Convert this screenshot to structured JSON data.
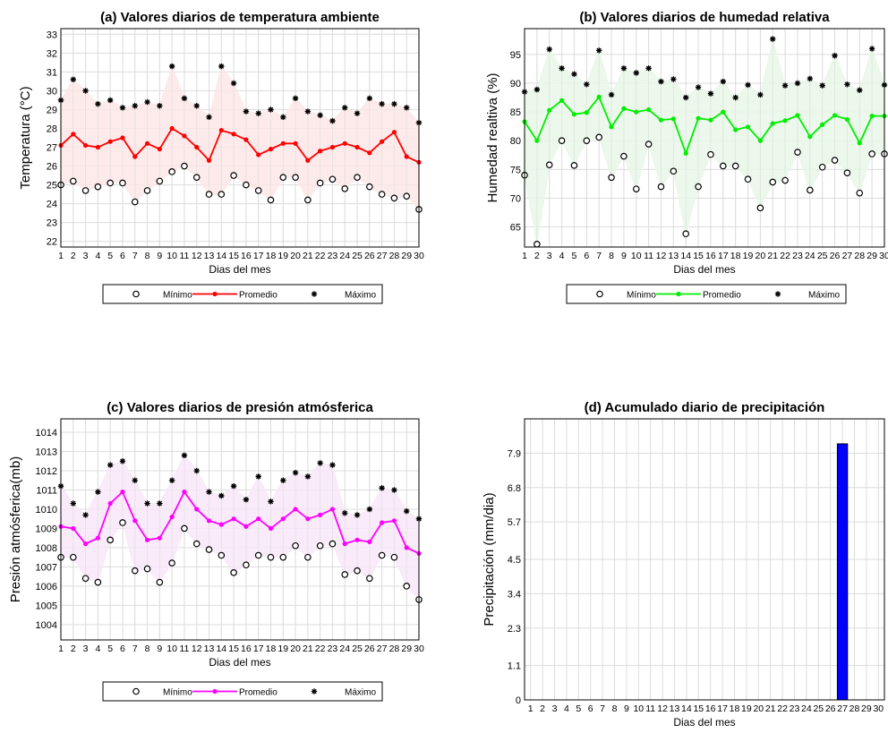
{
  "chart_data": [
    {
      "type": "line",
      "title": "(a) Valores diarios de temperatura ambiente",
      "xlabel": "Dias del mes",
      "ylabel": "Temperatura (°C)",
      "ylim": [
        21.7,
        33.3
      ],
      "yticks": [
        22,
        23,
        24,
        25,
        26,
        27,
        28,
        29,
        30,
        31,
        32,
        33
      ],
      "x": [
        1,
        2,
        3,
        4,
        5,
        6,
        7,
        8,
        9,
        10,
        11,
        12,
        13,
        14,
        15,
        16,
        17,
        18,
        19,
        20,
        21,
        22,
        23,
        24,
        25,
        26,
        27,
        28,
        29,
        30
      ],
      "grid": true,
      "legend_position": "bottom",
      "colors": {
        "line": "#ff0000",
        "band": "#fde8e8"
      },
      "series": [
        {
          "name": "Mínimo",
          "marker": "open-circle",
          "values": [
            25.0,
            25.2,
            24.7,
            24.9,
            25.1,
            25.1,
            24.1,
            24.7,
            25.2,
            25.7,
            26.0,
            25.4,
            24.5,
            24.5,
            25.5,
            25.0,
            24.7,
            24.2,
            25.4,
            25.4,
            24.2,
            25.1,
            25.3,
            24.8,
            25.4,
            24.9,
            24.5,
            24.3,
            24.4,
            23.7
          ]
        },
        {
          "name": "Promedio",
          "marker": "filled-circle-line",
          "values": [
            27.1,
            27.7,
            27.1,
            27.0,
            27.3,
            27.5,
            26.5,
            27.2,
            26.9,
            28.0,
            27.6,
            27.0,
            26.3,
            27.9,
            27.7,
            27.4,
            26.6,
            26.9,
            27.2,
            27.2,
            26.3,
            26.8,
            27.0,
            27.2,
            27.0,
            26.7,
            27.3,
            27.8,
            26.5,
            26.2
          ]
        },
        {
          "name": "Máximo",
          "marker": "asterisk",
          "values": [
            29.5,
            30.6,
            30.0,
            29.3,
            29.5,
            29.1,
            29.2,
            29.4,
            29.2,
            31.3,
            29.6,
            29.2,
            28.6,
            31.3,
            30.4,
            28.9,
            28.8,
            29.0,
            28.6,
            29.6,
            28.9,
            28.7,
            28.4,
            29.1,
            28.8,
            29.6,
            29.3,
            29.3,
            29.1,
            28.3
          ]
        }
      ]
    },
    {
      "type": "line",
      "title": "(b) Valores diarios de humedad relativa",
      "xlabel": "Dias del mes",
      "ylabel": "Humedad realtiva (%)",
      "ylim": [
        61.5,
        99.5
      ],
      "yticks": [
        65,
        70,
        75,
        80,
        85,
        90,
        95
      ],
      "x": [
        1,
        2,
        3,
        4,
        5,
        6,
        7,
        8,
        9,
        10,
        11,
        12,
        13,
        14,
        15,
        16,
        17,
        18,
        19,
        20,
        21,
        22,
        23,
        24,
        25,
        26,
        27,
        28,
        29,
        30
      ],
      "grid": true,
      "legend_position": "bottom",
      "colors": {
        "line": "#00ee00",
        "band": "#e8f7e8"
      },
      "series": [
        {
          "name": "Mínimo",
          "marker": "open-circle",
          "values": [
            74.0,
            62.0,
            75.8,
            80.0,
            75.7,
            80.0,
            80.6,
            73.6,
            77.3,
            71.6,
            79.4,
            72.0,
            74.7,
            63.8,
            72.0,
            77.6,
            75.6,
            75.6,
            73.3,
            68.3,
            72.8,
            73.1,
            78.0,
            71.4,
            75.4,
            76.6,
            74.4,
            70.9,
            77.7,
            77.7
          ]
        },
        {
          "name": "Promedio",
          "marker": "filled-circle-line",
          "values": [
            83.3,
            80.0,
            85.3,
            87.0,
            84.6,
            84.9,
            87.6,
            82.4,
            85.6,
            85.0,
            85.4,
            83.6,
            83.8,
            77.8,
            83.9,
            83.6,
            85.0,
            81.9,
            82.4,
            80.0,
            83.0,
            83.5,
            84.4,
            80.7,
            82.8,
            84.4,
            83.7,
            79.6,
            84.3,
            84.3
          ]
        },
        {
          "name": "Máximo",
          "marker": "asterisk",
          "values": [
            88.5,
            88.9,
            95.9,
            92.6,
            91.6,
            89.8,
            95.7,
            88.0,
            92.6,
            91.8,
            92.6,
            90.3,
            90.7,
            87.5,
            89.3,
            88.2,
            90.3,
            87.5,
            89.7,
            88.0,
            97.7,
            89.6,
            90.0,
            90.8,
            89.6,
            94.8,
            89.8,
            88.8,
            96.0,
            89.7
          ]
        }
      ]
    },
    {
      "type": "line",
      "title": "(c) Valores diarios de presión atmósferica",
      "xlabel": "Dias del mes",
      "ylabel": "Presión atmósferica(mb)",
      "ylim": [
        1003.2,
        1014.7
      ],
      "yticks": [
        1004,
        1005,
        1006,
        1007,
        1008,
        1009,
        1010,
        1011,
        1012,
        1013,
        1014
      ],
      "x": [
        1,
        2,
        3,
        4,
        5,
        6,
        7,
        8,
        9,
        10,
        11,
        12,
        13,
        14,
        15,
        16,
        17,
        18,
        19,
        20,
        21,
        22,
        23,
        24,
        25,
        26,
        27,
        28,
        29,
        30
      ],
      "grid": true,
      "legend_position": "bottom",
      "colors": {
        "line": "#ff00ff",
        "band": "#f8e8f8"
      },
      "series": [
        {
          "name": "Mínimo",
          "marker": "open-circle",
          "values": [
            1007.5,
            1007.5,
            1006.4,
            1006.2,
            1008.4,
            1009.3,
            1006.8,
            1006.9,
            1006.2,
            1007.2,
            1009.0,
            1008.2,
            1007.9,
            1007.6,
            1006.7,
            1007.1,
            1007.6,
            1007.5,
            1007.5,
            1008.1,
            1007.5,
            1008.1,
            1008.2,
            1006.6,
            1006.8,
            1006.4,
            1007.6,
            1007.5,
            1006.0,
            1005.3
          ]
        },
        {
          "name": "Promedio",
          "marker": "filled-circle-line",
          "values": [
            1009.1,
            1009.0,
            1008.2,
            1008.5,
            1010.3,
            1010.9,
            1009.4,
            1008.4,
            1008.5,
            1009.6,
            1010.9,
            1010.0,
            1009.4,
            1009.2,
            1009.5,
            1009.1,
            1009.5,
            1009.0,
            1009.5,
            1010.0,
            1009.5,
            1009.7,
            1010.0,
            1008.2,
            1008.4,
            1008.3,
            1009.3,
            1009.4,
            1008.0,
            1007.7
          ]
        },
        {
          "name": "Máximo",
          "marker": "asterisk",
          "values": [
            1011.2,
            1010.3,
            1009.7,
            1010.9,
            1012.3,
            1012.5,
            1011.5,
            1010.3,
            1010.3,
            1011.5,
            1012.8,
            1012.0,
            1010.9,
            1010.7,
            1011.2,
            1010.5,
            1011.7,
            1010.4,
            1011.5,
            1011.9,
            1011.7,
            1012.4,
            1012.3,
            1009.8,
            1009.7,
            1010.0,
            1011.1,
            1011.0,
            1009.9,
            1009.5
          ]
        }
      ]
    },
    {
      "type": "bar",
      "title": "(d) Acumulado diario de precipitación",
      "xlabel": "Dias del mes",
      "ylabel": "Precipitación (mm/dia)",
      "ylim": [
        0,
        9.0
      ],
      "yticks": [
        "0",
        "1.1",
        "2.3",
        "3.4",
        "4.5",
        "5.7",
        "6.8",
        "7.9"
      ],
      "x": [
        1,
        2,
        3,
        4,
        5,
        6,
        7,
        8,
        9,
        10,
        11,
        12,
        13,
        14,
        15,
        16,
        17,
        18,
        19,
        20,
        21,
        22,
        23,
        24,
        25,
        26,
        27,
        28,
        29,
        30
      ],
      "grid": true,
      "colors": {
        "bar": "#0000ff"
      },
      "values": [
        0,
        0,
        0,
        0,
        0,
        0,
        0,
        0,
        0,
        0,
        0,
        0,
        0,
        0,
        0,
        0,
        0,
        0,
        0,
        0,
        0,
        0,
        0,
        0,
        0,
        0,
        8.2,
        0,
        0,
        0
      ]
    }
  ]
}
